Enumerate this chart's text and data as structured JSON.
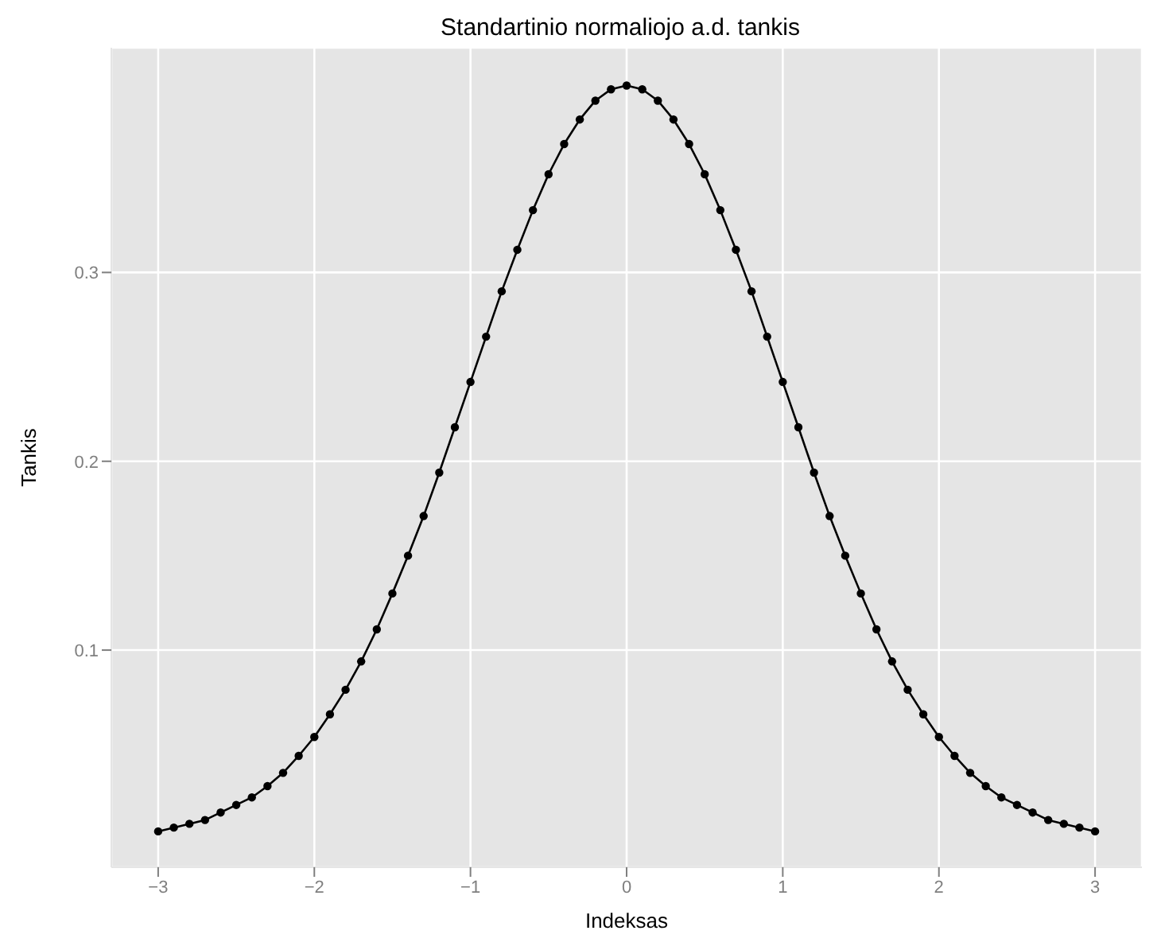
{
  "chart_data": {
    "type": "line",
    "title": "Standartinio normaliojo a.d. tankis",
    "xlabel": "Indeksas",
    "ylabel": "Tankis",
    "x": [
      -3,
      -2.9,
      -2.8,
      -2.7,
      -2.6,
      -2.5,
      -2.4,
      -2.3,
      -2.2,
      -2.1,
      -2,
      -1.9,
      -1.8,
      -1.7,
      -1.6,
      -1.5,
      -1.4,
      -1.3,
      -1.2,
      -1.1,
      -1,
      -0.9,
      -0.8,
      -0.7,
      -0.6,
      -0.5,
      -0.4,
      -0.3,
      -0.2,
      -0.1,
      0,
      0.1,
      0.2,
      0.3,
      0.4,
      0.5,
      0.6,
      0.7,
      0.8,
      0.9,
      1,
      1.1,
      1.2,
      1.3,
      1.4,
      1.5,
      1.6,
      1.7,
      1.8,
      1.9,
      2,
      2.1,
      2.2,
      2.3,
      2.4,
      2.5,
      2.6,
      2.7,
      2.8,
      2.9,
      3
    ],
    "series": [
      {
        "color": "#000000",
        "values": [
          0.004,
          0.006,
          0.008,
          0.01,
          0.014,
          0.018,
          0.022,
          0.028,
          0.035,
          0.044,
          0.054,
          0.066,
          0.079,
          0.094,
          0.111,
          0.13,
          0.15,
          0.171,
          0.194,
          0.218,
          0.242,
          0.266,
          0.29,
          0.312,
          0.333,
          0.352,
          0.368,
          0.381,
          0.391,
          0.397,
          0.399,
          0.397,
          0.391,
          0.381,
          0.368,
          0.352,
          0.333,
          0.312,
          0.29,
          0.266,
          0.242,
          0.218,
          0.194,
          0.171,
          0.15,
          0.13,
          0.111,
          0.094,
          0.079,
          0.066,
          0.054,
          0.044,
          0.035,
          0.028,
          0.022,
          0.018,
          0.014,
          0.01,
          0.008,
          0.006,
          0.004
        ]
      }
    ],
    "xlim": [
      -3.3,
      3.3
    ],
    "xticks": [
      -3,
      -2,
      -1,
      0,
      1,
      2,
      3
    ],
    "ylim": [
      -0.015,
      0.419
    ],
    "yticks": [
      0.1,
      0.2,
      0.3
    ],
    "grid": true,
    "legend": false,
    "marker": "circle",
    "line_style": "solid"
  }
}
